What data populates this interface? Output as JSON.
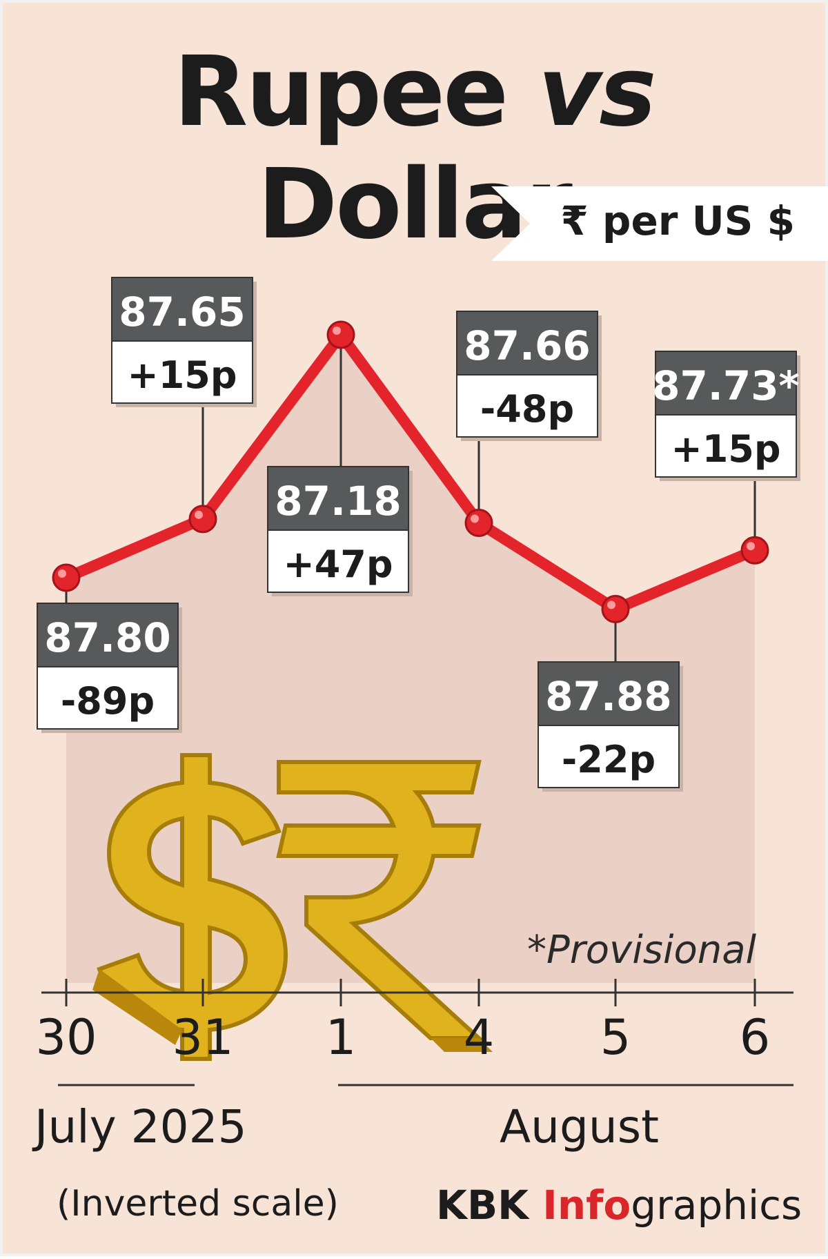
{
  "title": {
    "main1": "Rupee",
    "vs": "vs",
    "main2": "Dollar"
  },
  "unit": "₹  per US $",
  "chart_data": {
    "type": "line",
    "inverted_scale": true,
    "x": [
      "30",
      "31",
      "1",
      "4",
      "5",
      "6"
    ],
    "values": [
      87.8,
      87.65,
      87.18,
      87.66,
      87.88,
      87.73
    ],
    "changes": [
      "-89p",
      "+15p",
      "+47p",
      "-48p",
      "-22p",
      "+15p"
    ],
    "value_labels": [
      "87.80",
      "87.65",
      "87.18",
      "87.66",
      "87.88",
      "87.73*"
    ],
    "ylim": [
      87.0,
      88.0
    ],
    "months": [
      "July 2025",
      "August"
    ],
    "note": "(Inverted scale)",
    "footnote": "*Provisional",
    "colors": {
      "line": "#e3242b",
      "box_header": "#58595b",
      "background": "#f8e3d7",
      "area": "#ead0c5"
    }
  },
  "credit": {
    "part1": "KBK ",
    "part2": "Info",
    "part3": "graphics"
  },
  "icons": [
    "dollar-3d-icon",
    "rupee-3d-icon"
  ]
}
